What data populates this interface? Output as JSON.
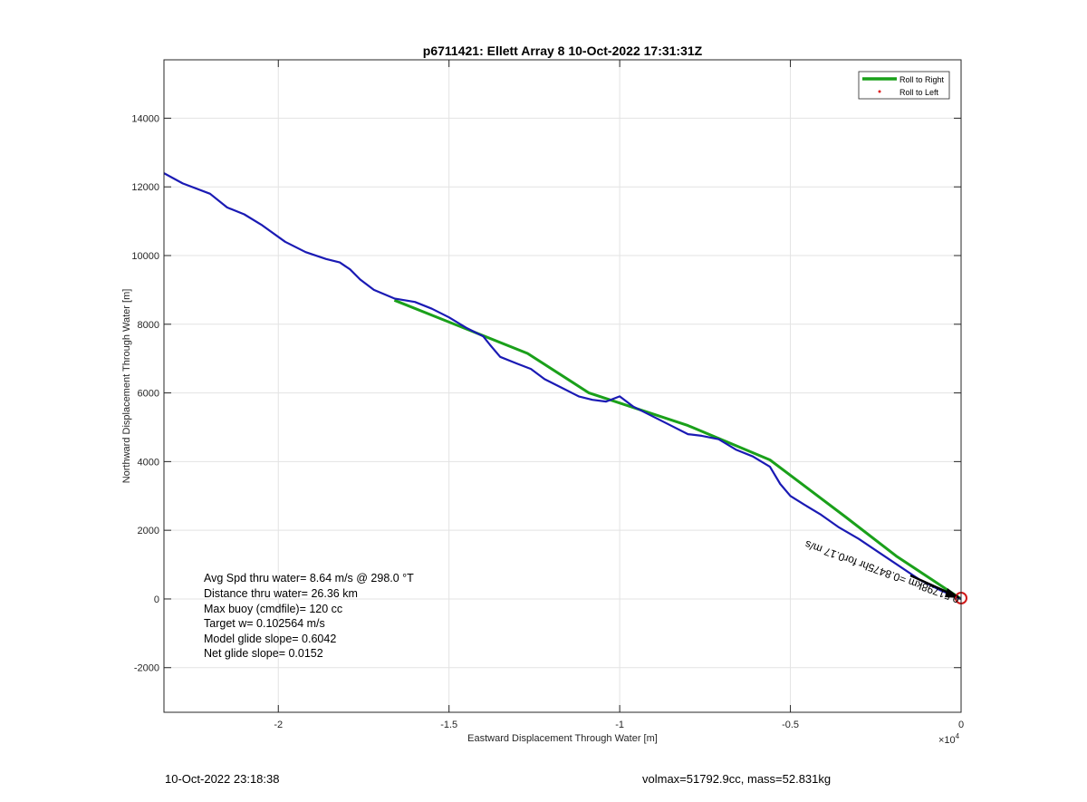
{
  "chart_data": {
    "type": "line",
    "title": "p6711421: Ellett Array 8 10-Oct-2022 17:31:31Z",
    "xlabel": "Eastward Displacement Through Water [m]",
    "ylabel": "Northward Displacement Through Water [m]",
    "xlim": [
      -23350,
      0
    ],
    "ylim": [
      -3300,
      15700
    ],
    "x_exponent_label": "×10",
    "x_exponent_power": "4",
    "x_ticks": [
      -20000,
      -15000,
      -10000,
      -5000,
      0
    ],
    "x_tick_labels": [
      "-2",
      "-1.5",
      "-1",
      "-0.5",
      "0"
    ],
    "y_ticks": [
      -2000,
      0,
      2000,
      4000,
      6000,
      8000,
      10000,
      12000,
      14000
    ],
    "y_tick_labels": [
      "-2000",
      "0",
      "2000",
      "4000",
      "6000",
      "8000",
      "10000",
      "12000",
      "14000"
    ],
    "grid": true,
    "legend": {
      "placement": "top-right",
      "entries": [
        {
          "label": "Roll to Right",
          "color": "#1aa01a",
          "marker": "line"
        },
        {
          "label": "Roll to Left",
          "color": "#e02020",
          "marker": "dot"
        }
      ]
    },
    "series": [
      {
        "color": "#1aa01a",
        "x": [
          -16600,
          -12700,
          -10900,
          -8000,
          -5600,
          -3400,
          -1900,
          0
        ],
        "y": [
          8700,
          7150,
          6000,
          5050,
          4050,
          2400,
          1250,
          0
        ]
      },
      {
        "color": "#1a1ab4",
        "x": [
          -23350,
          -22800,
          -22000,
          -21500,
          -21000,
          -20500,
          -19800,
          -19200,
          -18600,
          -18200,
          -17900,
          -17600,
          -17200,
          -16600,
          -16000,
          -15500,
          -15000,
          -14500,
          -14000,
          -13800,
          -13500,
          -13000,
          -12600,
          -12200,
          -11700,
          -11200,
          -10800,
          -10400,
          -10000,
          -9600,
          -9200,
          -8600,
          -8000,
          -7600,
          -7100,
          -6600,
          -6100,
          -5600,
          -5300,
          -5000,
          -4600,
          -4100,
          -3600,
          -3000,
          -2400,
          -1800,
          -1200,
          -600,
          0
        ],
        "y": [
          12400,
          12100,
          11800,
          11400,
          11200,
          10900,
          10400,
          10100,
          9900,
          9800,
          9600,
          9300,
          9000,
          8750,
          8650,
          8450,
          8200,
          7900,
          7650,
          7400,
          7050,
          6850,
          6700,
          6400,
          6150,
          5900,
          5800,
          5750,
          5900,
          5600,
          5400,
          5100,
          4800,
          4750,
          4650,
          4350,
          4150,
          3850,
          3350,
          3000,
          2750,
          2450,
          2100,
          1750,
          1350,
          950,
          550,
          250,
          0
        ]
      }
    ],
    "annotations": {
      "drift_label": "0.51798km   =0.8475hr for0.17 m/s",
      "stats": [
        "Avg Spd thru water=  8.64 m/s @ 298.0 °T",
        "Distance thru water= 26.36 km",
        "Max buoy (cmdfile)= 120 cc",
        "Target w= 0.102564 m/s",
        "Model glide slope= 0.6042",
        "Net glide slope= 0.0152"
      ]
    }
  },
  "footer": {
    "date": "10-Oct-2022 23:18:38",
    "vol_mass": "volmax=51792.9cc, mass=52.831kg"
  }
}
